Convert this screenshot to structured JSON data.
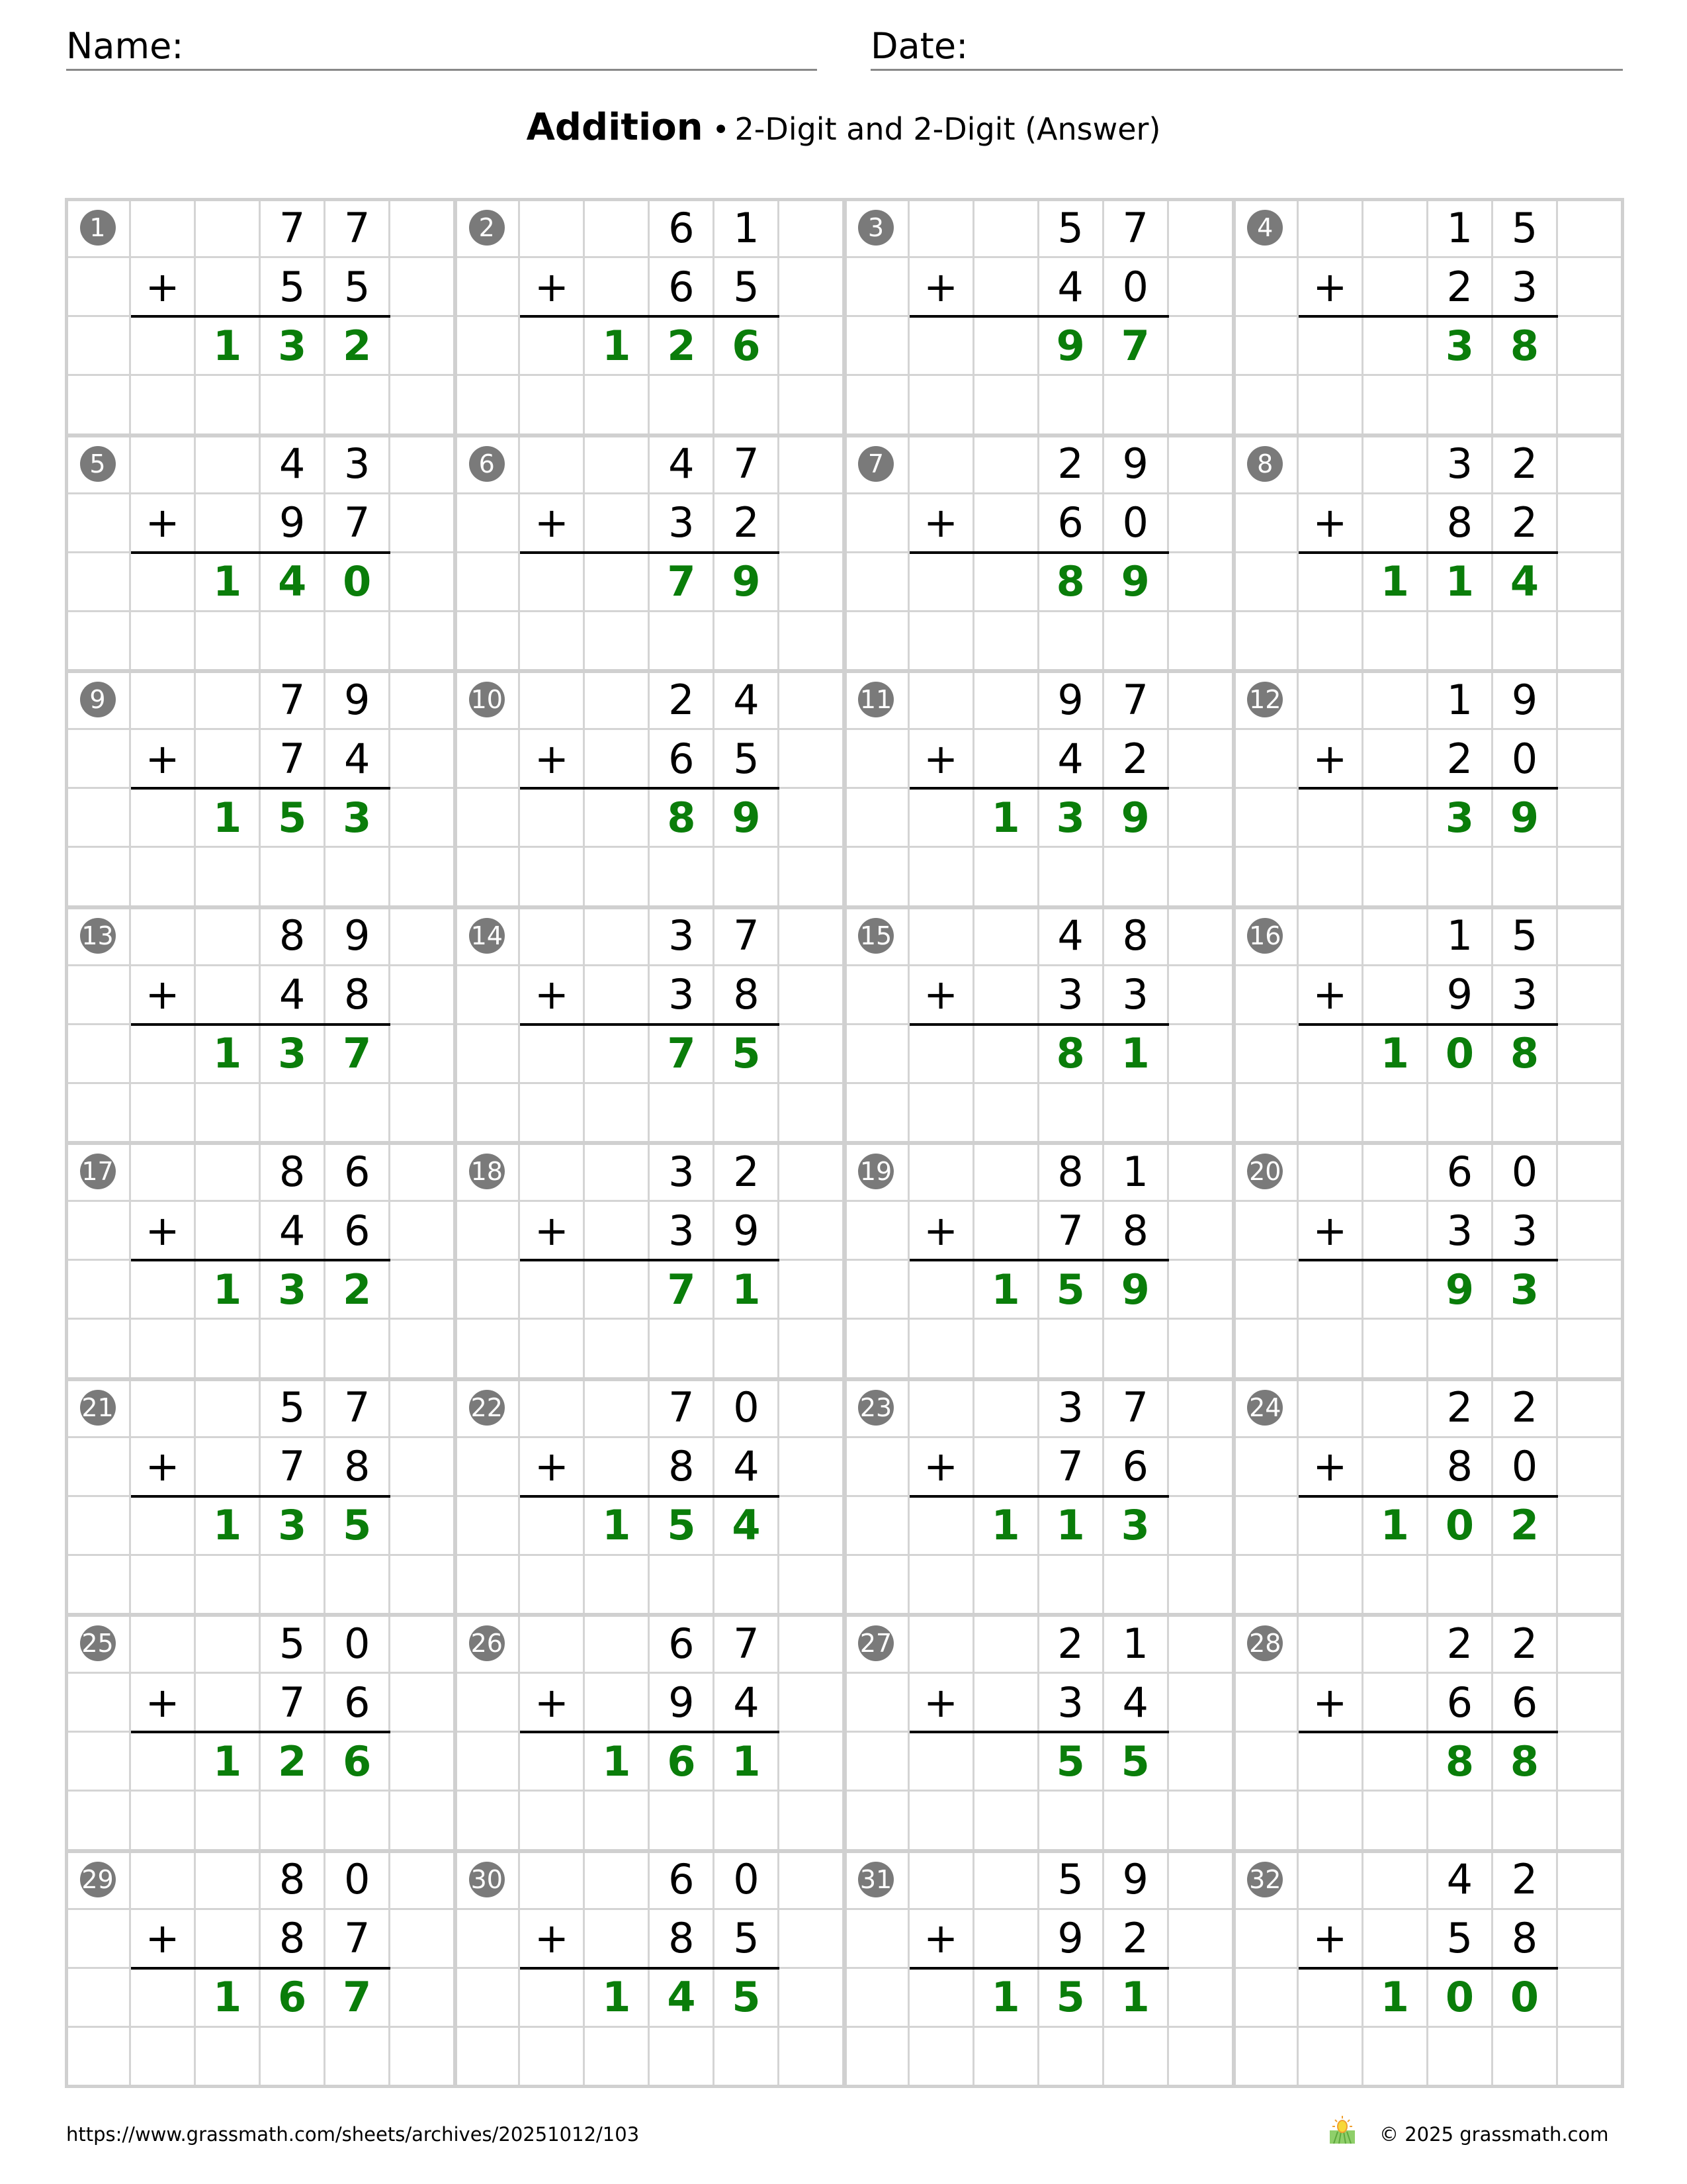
{
  "header": {
    "name_label": "Name:",
    "date_label": "Date:"
  },
  "title": {
    "main": "Addition",
    "separator": "•",
    "subtitle": "2-Digit and 2-Digit (Answer)"
  },
  "colors": {
    "answer": "#0a7d0a",
    "badge": "#7a7a7a",
    "grid": "#d4d4d4"
  },
  "operator": "+",
  "problems": [
    {
      "n": "1",
      "a": "77",
      "b": "55",
      "ans": "132"
    },
    {
      "n": "2",
      "a": "61",
      "b": "65",
      "ans": "126"
    },
    {
      "n": "3",
      "a": "57",
      "b": "40",
      "ans": "97"
    },
    {
      "n": "4",
      "a": "15",
      "b": "23",
      "ans": "38"
    },
    {
      "n": "5",
      "a": "43",
      "b": "97",
      "ans": "140"
    },
    {
      "n": "6",
      "a": "47",
      "b": "32",
      "ans": "79"
    },
    {
      "n": "7",
      "a": "29",
      "b": "60",
      "ans": "89"
    },
    {
      "n": "8",
      "a": "32",
      "b": "82",
      "ans": "114"
    },
    {
      "n": "9",
      "a": "79",
      "b": "74",
      "ans": "153"
    },
    {
      "n": "10",
      "a": "24",
      "b": "65",
      "ans": "89"
    },
    {
      "n": "11",
      "a": "97",
      "b": "42",
      "ans": "139"
    },
    {
      "n": "12",
      "a": "19",
      "b": "20",
      "ans": "39"
    },
    {
      "n": "13",
      "a": "89",
      "b": "48",
      "ans": "137"
    },
    {
      "n": "14",
      "a": "37",
      "b": "38",
      "ans": "75"
    },
    {
      "n": "15",
      "a": "48",
      "b": "33",
      "ans": "81"
    },
    {
      "n": "16",
      "a": "15",
      "b": "93",
      "ans": "108"
    },
    {
      "n": "17",
      "a": "86",
      "b": "46",
      "ans": "132"
    },
    {
      "n": "18",
      "a": "32",
      "b": "39",
      "ans": "71"
    },
    {
      "n": "19",
      "a": "81",
      "b": "78",
      "ans": "159"
    },
    {
      "n": "20",
      "a": "60",
      "b": "33",
      "ans": "93"
    },
    {
      "n": "21",
      "a": "57",
      "b": "78",
      "ans": "135"
    },
    {
      "n": "22",
      "a": "70",
      "b": "84",
      "ans": "154"
    },
    {
      "n": "23",
      "a": "37",
      "b": "76",
      "ans": "113"
    },
    {
      "n": "24",
      "a": "22",
      "b": "80",
      "ans": "102"
    },
    {
      "n": "25",
      "a": "50",
      "b": "76",
      "ans": "126"
    },
    {
      "n": "26",
      "a": "67",
      "b": "94",
      "ans": "161"
    },
    {
      "n": "27",
      "a": "21",
      "b": "34",
      "ans": "55"
    },
    {
      "n": "28",
      "a": "22",
      "b": "66",
      "ans": "88"
    },
    {
      "n": "29",
      "a": "80",
      "b": "87",
      "ans": "167"
    },
    {
      "n": "30",
      "a": "60",
      "b": "85",
      "ans": "145"
    },
    {
      "n": "31",
      "a": "59",
      "b": "92",
      "ans": "151"
    },
    {
      "n": "32",
      "a": "42",
      "b": "58",
      "ans": "100"
    }
  ],
  "footer": {
    "url": "https://www.grassmath.com/sheets/archives/20251012/103",
    "copyright": "© 2025 grassmath.com",
    "logo_icon": "sun-over-grass-icon"
  }
}
